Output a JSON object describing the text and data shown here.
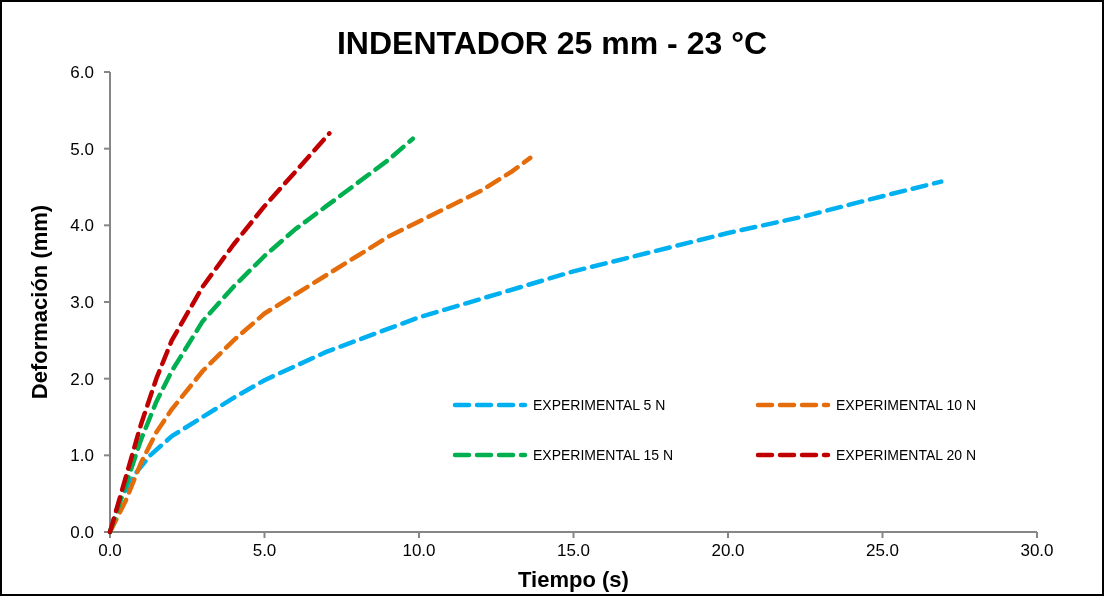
{
  "chart_data": {
    "type": "line",
    "title": "INDENTADOR 25 mm - 23 °C",
    "xlabel": "Tiempo (s)",
    "ylabel": "Deformación  (mm)",
    "xlim": [
      0,
      30
    ],
    "xticks": [
      {
        "value": 0,
        "label": "0.0"
      },
      {
        "value": 5,
        "label": "5.0"
      },
      {
        "value": 10,
        "label": "10.0"
      },
      {
        "value": 15,
        "label": "15.0"
      },
      {
        "value": 20,
        "label": "20.0"
      },
      {
        "value": 25,
        "label": "25.0"
      },
      {
        "value": 30,
        "label": "30.0"
      }
    ],
    "ylim": [
      0,
      6
    ],
    "yticks": [
      {
        "value": 0,
        "label": "0.0"
      },
      {
        "value": 1,
        "label": "1.0"
      },
      {
        "value": 2,
        "label": "2.0"
      },
      {
        "value": 3,
        "label": "3.0"
      },
      {
        "value": 4,
        "label": "4.0"
      },
      {
        "value": 5,
        "label": "5.0"
      },
      {
        "value": 6,
        "label": "6.0"
      }
    ],
    "grid": false,
    "legend": "bottom right",
    "marker": "none",
    "line_style": "dashed",
    "series": [
      {
        "name": "EXPERIMENTAL 5 N",
        "color": "#00b0f0",
        "x": [
          0,
          0.3,
          0.8,
          1.3,
          2,
          3,
          4,
          5,
          7,
          10,
          12.5,
          15,
          17.5,
          20,
          22.5,
          25,
          26.9
        ],
        "values": [
          0,
          0.4,
          0.75,
          1.0,
          1.25,
          1.5,
          1.75,
          1.98,
          2.35,
          2.8,
          3.1,
          3.4,
          3.65,
          3.9,
          4.12,
          4.38,
          4.57
        ]
      },
      {
        "name": "EXPERIMENTAL 10 N",
        "color": "#e46c0a",
        "x": [
          0,
          0.5,
          1,
          1.5,
          2,
          3,
          4,
          5,
          6,
          7,
          8,
          9,
          10,
          11,
          12,
          13,
          13.6
        ],
        "values": [
          0,
          0.4,
          0.9,
          1.3,
          1.6,
          2.1,
          2.5,
          2.85,
          3.1,
          3.35,
          3.6,
          3.85,
          4.05,
          4.25,
          4.45,
          4.7,
          4.88
        ]
      },
      {
        "name": "EXPERIMENTAL 15 N",
        "color": "#00b050",
        "x": [
          0,
          0.5,
          1,
          1.5,
          2,
          3,
          4,
          5,
          6,
          7,
          8,
          9,
          9.8
        ],
        "values": [
          0,
          0.6,
          1.2,
          1.7,
          2.1,
          2.75,
          3.2,
          3.6,
          3.95,
          4.25,
          4.55,
          4.85,
          5.13
        ]
      },
      {
        "name": "EXPERIMENTAL 20 N",
        "color": "#c00000",
        "x": [
          0,
          0.5,
          1,
          1.5,
          2,
          3,
          4,
          5,
          6,
          7.1
        ],
        "values": [
          0,
          0.7,
          1.4,
          2.0,
          2.5,
          3.2,
          3.75,
          4.25,
          4.7,
          5.2
        ]
      }
    ]
  }
}
